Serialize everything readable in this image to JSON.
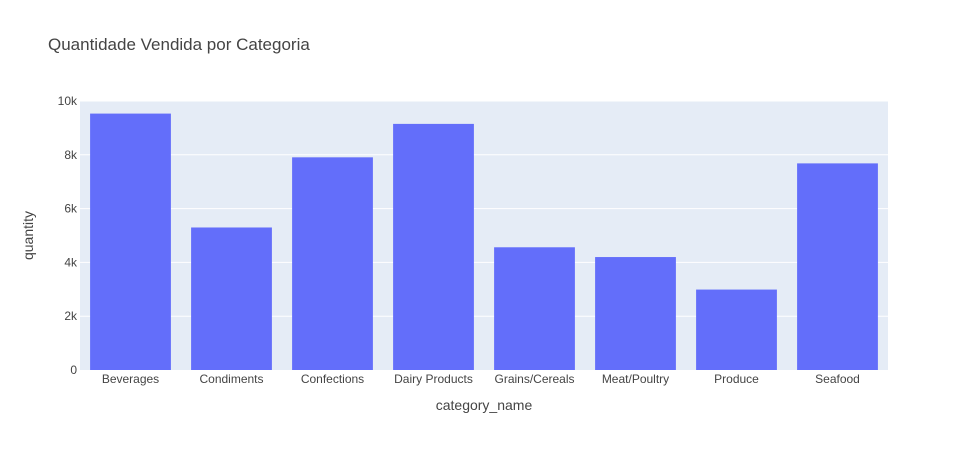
{
  "chart_data": {
    "type": "bar",
    "title": "Quantidade Vendida por Categoria",
    "xlabel": "category_name",
    "ylabel": "quantity",
    "categories": [
      "Beverages",
      "Condiments",
      "Confections",
      "Dairy Products",
      "Grains/Cereals",
      "Meat/Poultry",
      "Produce",
      "Seafood"
    ],
    "values": [
      9532,
      5298,
      7906,
      9149,
      4562,
      4199,
      2990,
      7681
    ],
    "ylim": [
      0,
      10000
    ],
    "y_ticks": [
      0,
      2000,
      4000,
      6000,
      8000,
      10000
    ],
    "y_tick_labels": [
      "0",
      "2k",
      "4k",
      "6k",
      "8k",
      "10k"
    ],
    "grid": true,
    "legend": "none",
    "colors": {
      "bar": "#636efa",
      "plot_background": "#e5ecf6",
      "grid": "#ffffff",
      "text": "#444444"
    }
  }
}
